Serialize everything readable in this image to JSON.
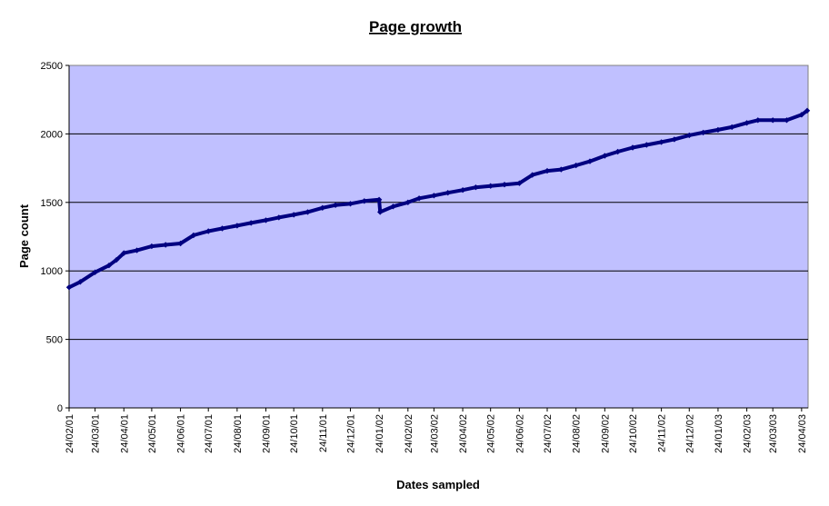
{
  "chart_data": {
    "type": "line",
    "title": "Page growth",
    "xlabel": "Dates sampled",
    "ylabel": "Page count",
    "ylim": [
      0,
      2500
    ],
    "yticks": [
      "0",
      "500",
      "1000",
      "1500",
      "2000",
      "2500"
    ],
    "grid": "horizontal",
    "legend": "none",
    "colors": {
      "plot_background": "#c0c0ff",
      "line": "#000080",
      "grid": "#000000"
    },
    "x_tick_labels": [
      "24/02/01",
      "24/03/01",
      "24/04/01",
      "24/05/01",
      "24/06/01",
      "24/07/01",
      "24/08/01",
      "24/09/01",
      "24/10/01",
      "24/11/01",
      "24/12/01",
      "24/01/02",
      "24/02/02",
      "24/03/02",
      "24/04/02",
      "24/05/02",
      "24/06/02",
      "24/07/02",
      "24/08/02",
      "24/09/02",
      "24/10/02",
      "24/11/02",
      "24/12/02",
      "24/01/03",
      "24/02/03",
      "24/03/03",
      "24/04/03"
    ],
    "series": [
      {
        "x": [
          "24/02/01",
          "08/03/01",
          "24/03/01",
          "08/04/01",
          "16/04/01",
          "24/04/01",
          "08/05/01",
          "24/05/01",
          "08/06/01",
          "24/06/01",
          "08/07/01",
          "24/07/01",
          "08/08/01",
          "24/08/01",
          "08/09/01",
          "24/09/01",
          "08/10/01",
          "24/10/01",
          "08/11/01",
          "24/11/01",
          "08/12/01",
          "24/12/01",
          "08/01/02",
          "24/01/02",
          "25/01/02",
          "08/02/02",
          "24/02/02",
          "08/03/02",
          "24/03/02",
          "08/04/02",
          "24/04/02",
          "08/05/02",
          "24/05/02",
          "08/06/02",
          "24/06/02",
          "08/07/02",
          "24/07/02",
          "08/08/02",
          "24/08/02",
          "08/09/02",
          "24/09/02",
          "08/10/02",
          "24/10/02",
          "08/11/02",
          "24/11/02",
          "08/12/02",
          "24/12/02",
          "08/01/03",
          "24/01/03",
          "08/02/03",
          "24/02/03",
          "08/03/03",
          "24/03/03",
          "08/04/03",
          "24/04/03",
          "30/04/03"
        ],
        "values": [
          880,
          920,
          990,
          1040,
          1080,
          1130,
          1150,
          1180,
          1190,
          1200,
          1260,
          1290,
          1310,
          1330,
          1350,
          1370,
          1390,
          1410,
          1430,
          1460,
          1480,
          1490,
          1510,
          1520,
          1430,
          1470,
          1500,
          1530,
          1550,
          1570,
          1590,
          1610,
          1620,
          1630,
          1640,
          1700,
          1730,
          1740,
          1770,
          1800,
          1840,
          1870,
          1900,
          1920,
          1940,
          1960,
          1990,
          2010,
          2030,
          2050,
          2080,
          2100,
          2100,
          2100,
          2140,
          2170
        ]
      }
    ]
  }
}
